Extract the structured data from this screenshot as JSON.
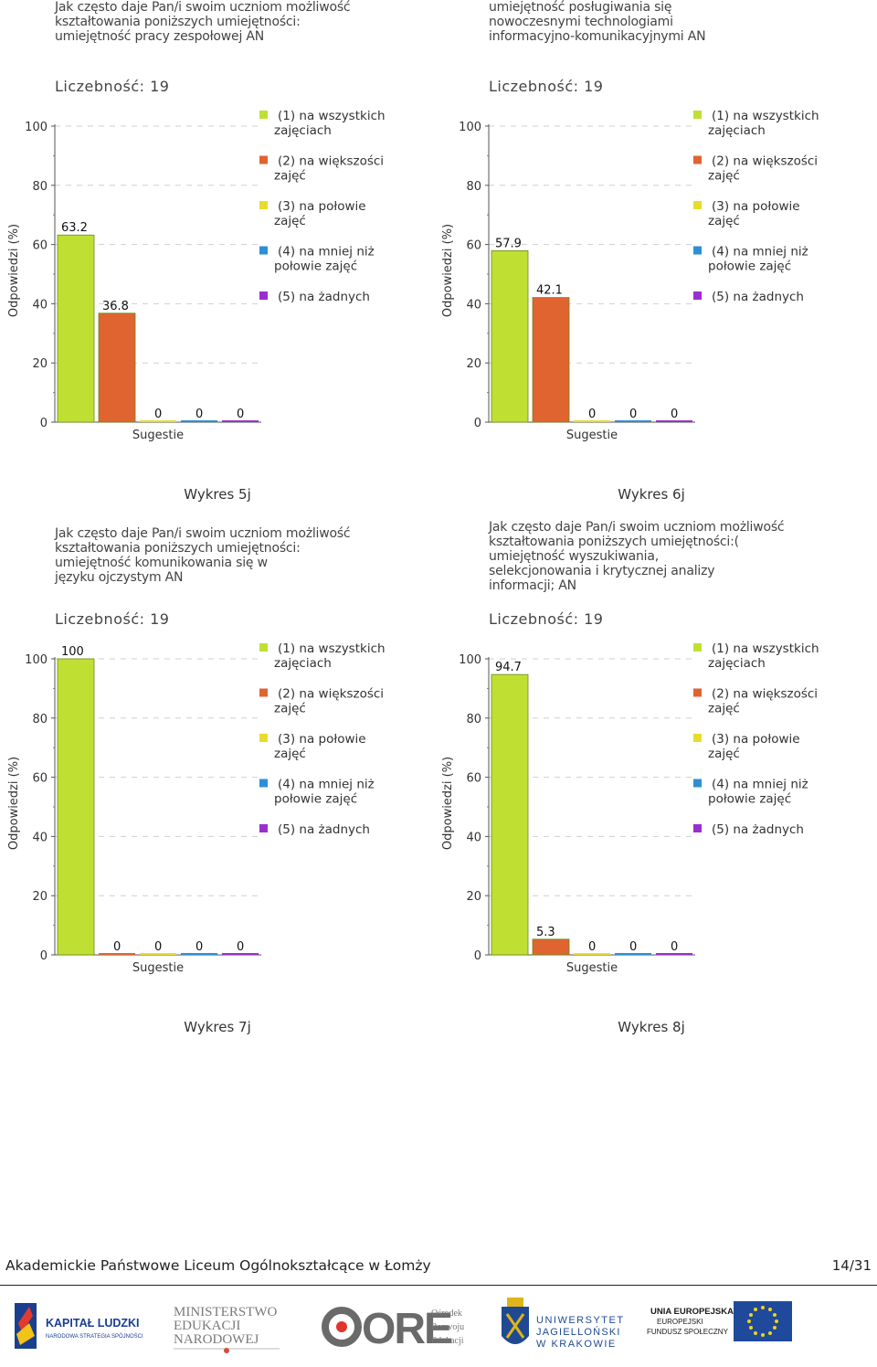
{
  "legend_items": [
    "(1) na wszystkich\nzajęciach",
    "(2) na większości\nzajęć",
    "(3) na połowie\nzajęć",
    "(4) na mniej niż\npołowie zajęć",
    "(5) na żadnych"
  ],
  "series_colors": [
    "#bfe033",
    "#e06430",
    "#e7dc2e",
    "#2d8fd6",
    "#9a2fd0"
  ],
  "chart_data": [
    {
      "type": "bar",
      "question": "Jak często daje Pan/i swoim uczniom możliwość\nkształtowania poniższych umiejętności:\numiejętność pracy zespołowej   AN",
      "count_label": "Liczebność: 19",
      "categories": [
        "(1) na wszystkich zajęciach",
        "(2) na większości zajęć",
        "(3) na połowie zajęć",
        "(4) na mniej niż połowie zajęć",
        "(5) na żadnych"
      ],
      "values": [
        63.2,
        36.8,
        0,
        0,
        0
      ],
      "value_labels": [
        "63.2",
        "36.8",
        "0",
        "0",
        "0"
      ],
      "xlabel": "Sugestie",
      "ylabel": "Odpowiedzi (%)",
      "yticks": [
        "0",
        "20",
        "40",
        "60",
        "80",
        "100"
      ],
      "ylim": [
        0,
        100
      ],
      "caption": "Wykres 5j"
    },
    {
      "type": "bar",
      "question": "umiejętność posługiwania się\nnowoczesnymi technologiami\ninformacyjno-komunikacyjnymi AN",
      "count_label": "Liczebność: 19",
      "categories": [
        "(1) na wszystkich zajęciach",
        "(2) na większości zajęć",
        "(3) na połowie zajęć",
        "(4) na mniej niż połowie zajęć",
        "(5) na żadnych"
      ],
      "values": [
        57.9,
        42.1,
        0,
        0,
        0
      ],
      "value_labels": [
        "57.9",
        "42.1",
        "0",
        "0",
        "0"
      ],
      "xlabel": "Sugestie",
      "ylabel": "Odpowiedzi (%)",
      "yticks": [
        "0",
        "20",
        "40",
        "60",
        "80",
        "100"
      ],
      "ylim": [
        0,
        100
      ],
      "caption": "Wykres 6j"
    },
    {
      "type": "bar",
      "question": "Jak często daje Pan/i swoim uczniom możliwość\nkształtowania poniższych umiejętności:\numiejętność komunikowania się w\njęzyku ojczystym AN",
      "count_label": "Liczebność: 19",
      "categories": [
        "(1) na wszystkich zajęciach",
        "(2) na większości zajęć",
        "(3) na połowie zajęć",
        "(4) na mniej niż połowie zajęć",
        "(5) na żadnych"
      ],
      "values": [
        100,
        0,
        0,
        0,
        0
      ],
      "value_labels": [
        "100",
        "0",
        "0",
        "0",
        "0"
      ],
      "xlabel": "Sugestie",
      "ylabel": "Odpowiedzi (%)",
      "yticks": [
        "0",
        "20",
        "40",
        "60",
        "80",
        "100"
      ],
      "ylim": [
        0,
        100
      ],
      "caption": "Wykres 7j"
    },
    {
      "type": "bar",
      "question": "Jak często daje Pan/i swoim uczniom możliwość\nkształtowania poniższych umiejętności:(\numiejętność wyszukiwania,\nselekcjonowania i krytycznej analizy\ninformacji;  AN",
      "count_label": "Liczebność: 19",
      "categories": [
        "(1) na wszystkich zajęciach",
        "(2) na większości zajęć",
        "(3) na połowie zajęć",
        "(4) na mniej niż połowie zajęć",
        "(5) na żadnych"
      ],
      "values": [
        94.7,
        5.3,
        0,
        0,
        0
      ],
      "value_labels": [
        "94.7",
        "5.3",
        "0",
        "0",
        "0"
      ],
      "xlabel": "Sugestie",
      "ylabel": "Odpowiedzi (%)",
      "yticks": [
        "0",
        "20",
        "40",
        "60",
        "80",
        "100"
      ],
      "ylim": [
        0,
        100
      ],
      "caption": "Wykres 8j"
    }
  ],
  "footer": {
    "school": "Akademickie Państwowe Liceum Ogólnokształcące w Łomży",
    "page": "14/31"
  },
  "logos": {
    "kl_title": "KAPITAŁ LUDZKI",
    "kl_sub": "NARODOWA STRATEGIA SPÓJNOŚCI",
    "men_1": "MINISTERSTWO",
    "men_2": "EDUKACJI",
    "men_3": "NARODOWEJ",
    "ore_mark": "ORE",
    "ore_1": "Ośrodek",
    "ore_2": "Rozwoju",
    "ore_3": "Edukacji",
    "uj_1": "UNIWERSYTET",
    "uj_2": "JAGIELLOŃSKI",
    "uj_3": "W KRAKOWIE",
    "ue_1": "UNIA EUROPEJSKA",
    "ue_2": "EUROPEJSKI",
    "ue_3": "FUNDUSZ SPOŁECZNY"
  }
}
